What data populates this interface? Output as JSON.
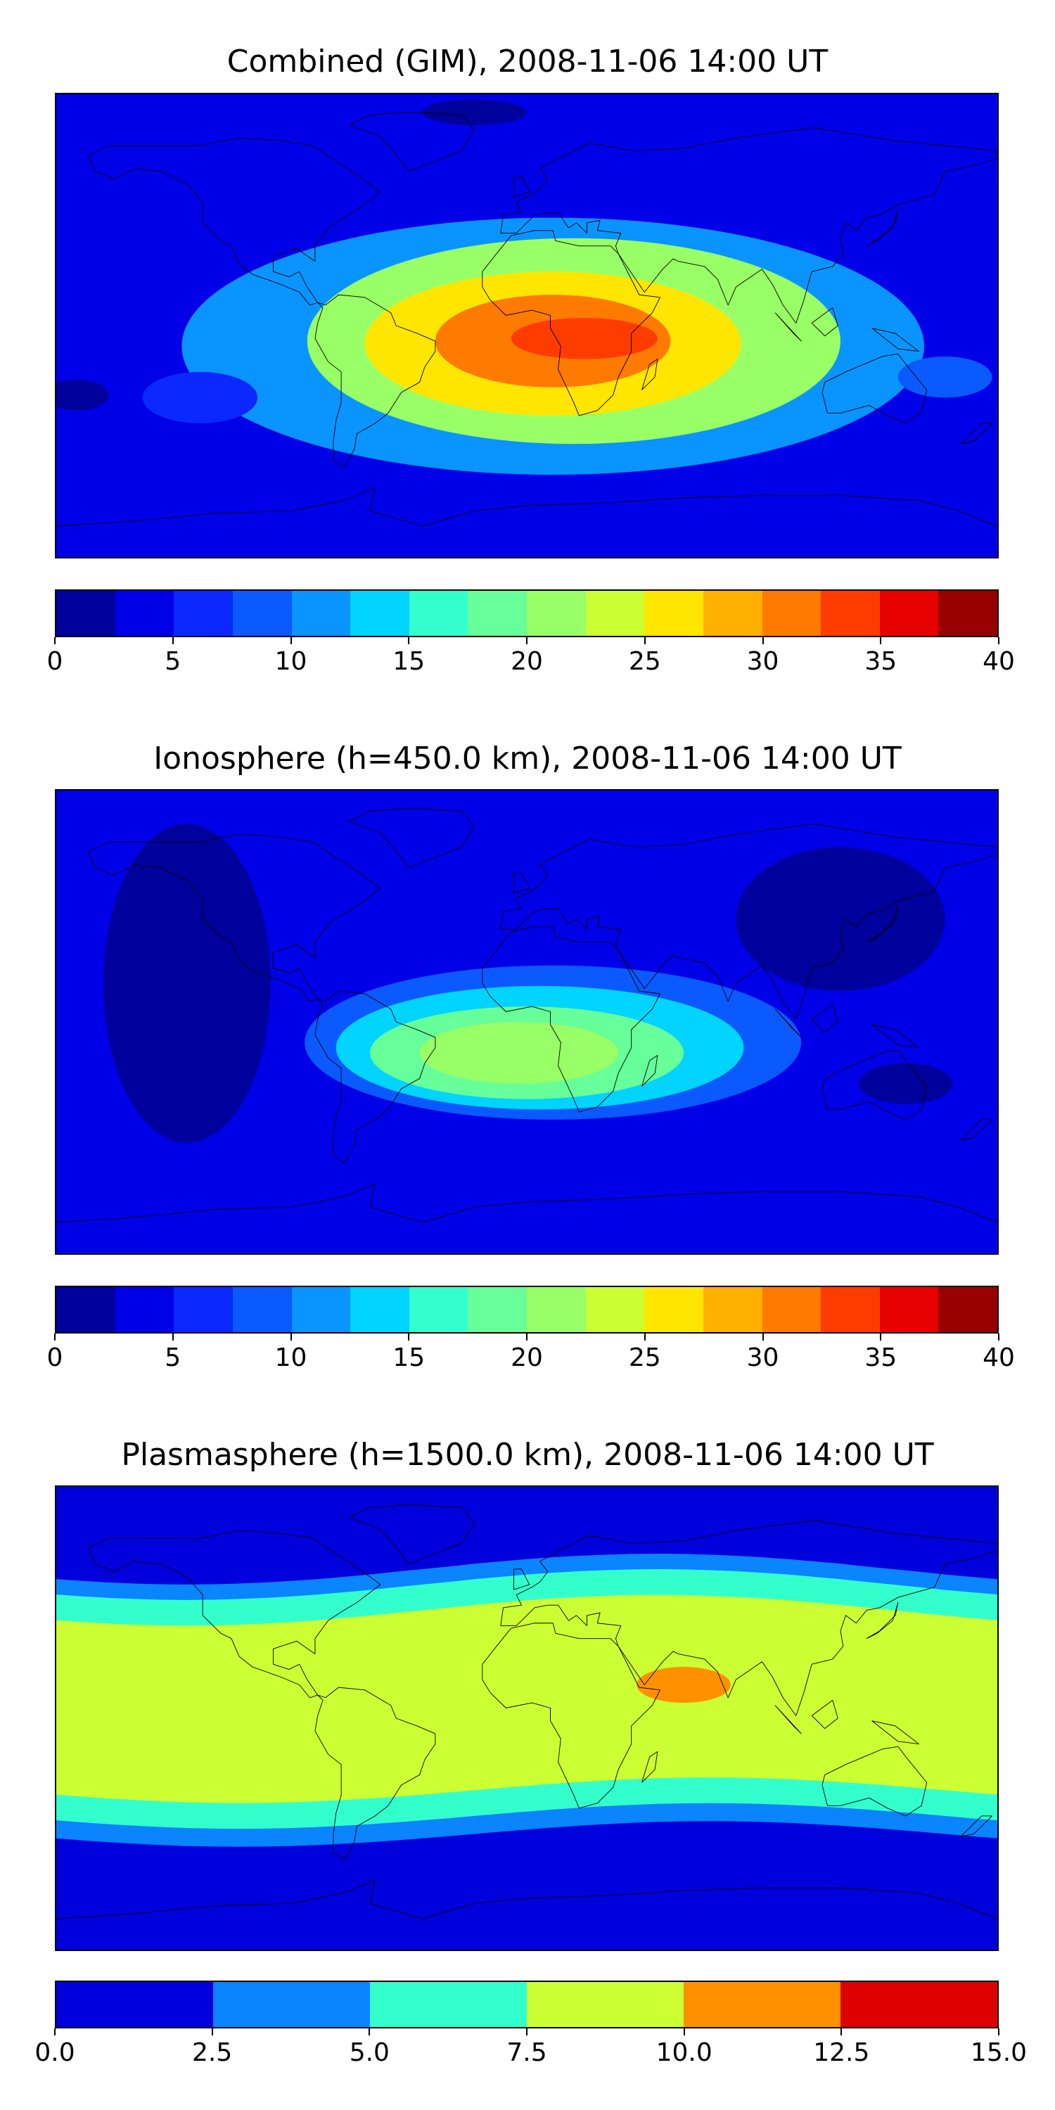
{
  "chart_data": [
    {
      "type": "heatmap",
      "title": "Combined (GIM), 2008-11-06 14:00 UT",
      "colorbar": {
        "levels": [
          0,
          2.5,
          5,
          7.5,
          10,
          12.5,
          15,
          17.5,
          20,
          22.5,
          25,
          27.5,
          30,
          32.5,
          35,
          37.5,
          40
        ],
        "ticks": [
          "0",
          "5",
          "10",
          "15",
          "20",
          "25",
          "30",
          "35",
          "40"
        ],
        "tick_values": [
          0,
          5,
          10,
          15,
          20,
          25,
          30,
          35,
          40
        ],
        "colors": [
          "#00009c",
          "#0000e8",
          "#0a28ff",
          "#0a5aff",
          "#0a94ff",
          "#00d4ff",
          "#33ffcc",
          "#66ff99",
          "#99ff66",
          "#ccff33",
          "#ffe600",
          "#ffb000",
          "#ff7a00",
          "#ff3c00",
          "#e60000",
          "#990000"
        ]
      },
      "background_level": 1,
      "features": [
        {
          "lon": 10,
          "lat": -8,
          "level": 4
        },
        {
          "lon": 18,
          "lat": -6,
          "level": 8
        },
        {
          "lon": 10,
          "lat": -7,
          "level": 10
        },
        {
          "lon": 10,
          "lat": -6,
          "level": 12
        },
        {
          "lon": 22,
          "lat": -5,
          "level": 13
        },
        {
          "lon": -125,
          "lat": -28,
          "level": 2
        },
        {
          "lon": 160,
          "lat": -20,
          "level": 3
        },
        {
          "lon": -172,
          "lat": -27,
          "level": 0
        },
        {
          "lon": -20,
          "lat": 83,
          "level": 0
        }
      ]
    },
    {
      "type": "heatmap",
      "title": "Ionosphere  (h=450.0 km), 2008-11-06 14:00 UT",
      "colorbar": {
        "levels": [
          0,
          2.5,
          5,
          7.5,
          10,
          12.5,
          15,
          17.5,
          20,
          22.5,
          25,
          27.5,
          30,
          32.5,
          35,
          37.5,
          40
        ],
        "ticks": [
          "0",
          "5",
          "10",
          "15",
          "20",
          "25",
          "30",
          "35",
          "40"
        ],
        "tick_values": [
          0,
          5,
          10,
          15,
          20,
          25,
          30,
          35,
          40
        ],
        "colors": [
          "#00009c",
          "#0000e8",
          "#0a28ff",
          "#0a5aff",
          "#0a94ff",
          "#00d4ff",
          "#33ffcc",
          "#66ff99",
          "#99ff66",
          "#ccff33",
          "#ffe600",
          "#ffb000",
          "#ff7a00",
          "#ff3c00",
          "#e60000",
          "#990000"
        ]
      },
      "background_level": 1,
      "features": [
        {
          "lon": 10,
          "lat": -8,
          "level": 3
        },
        {
          "lon": 5,
          "lat": -10,
          "level": 5
        },
        {
          "lon": 0,
          "lat": -12,
          "level": 7
        },
        {
          "lon": -3,
          "lat": -12,
          "level": 8
        },
        {
          "lon": -130,
          "lat": 15,
          "level": 0
        },
        {
          "lon": 120,
          "lat": 40,
          "level": 0
        },
        {
          "lon": 145,
          "lat": -24,
          "level": 0
        }
      ]
    },
    {
      "type": "heatmap",
      "title": "Plasmasphere (h=1500.0 km), 2008-11-06 14:00 UT",
      "colorbar": {
        "levels": [
          0,
          2.5,
          5,
          7.5,
          10,
          12.5,
          15
        ],
        "ticks": [
          "0.0",
          "2.5",
          "5.0",
          "7.5",
          "10.0",
          "12.5",
          "15.0"
        ],
        "tick_values": [
          0,
          2.5,
          5,
          7.5,
          10,
          12.5,
          15
        ],
        "colors": [
          "#0000dd",
          "#0a84ff",
          "#33ffcc",
          "#ccff33",
          "#ff9100",
          "#dd0000"
        ]
      },
      "background_level": 0,
      "features": [
        {
          "lon": 0,
          "lat": 0,
          "level": 1
        },
        {
          "lon": 0,
          "lat": 3,
          "level": 2
        },
        {
          "lon": 15,
          "lat": 2,
          "level": 3
        },
        {
          "lon": 60,
          "lat": 13,
          "level": 4
        }
      ]
    }
  ]
}
